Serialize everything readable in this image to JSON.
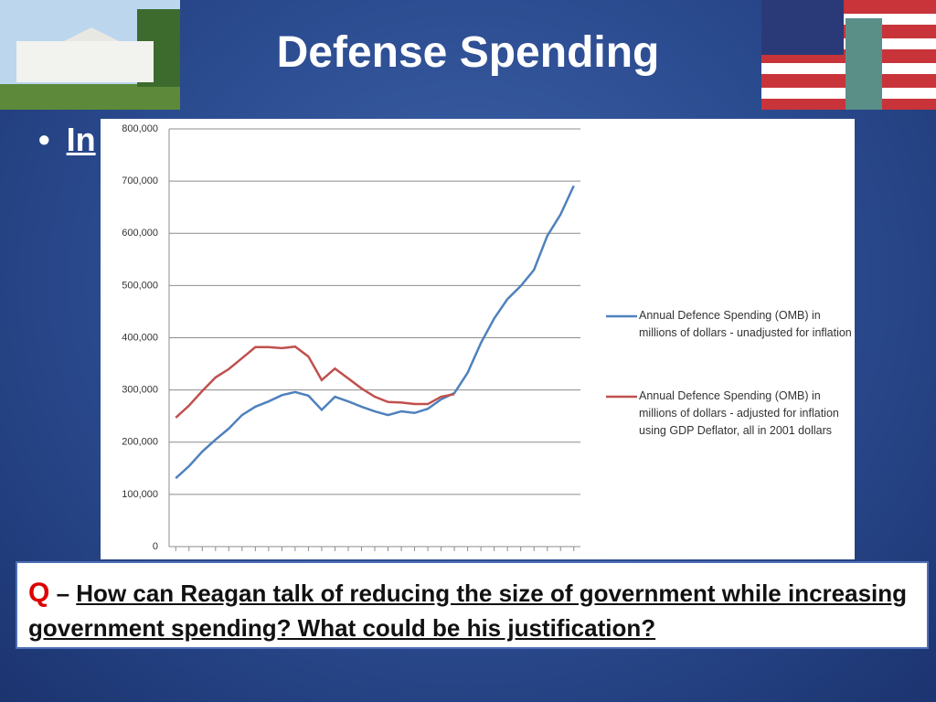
{
  "slide": {
    "title": "Defense Spending",
    "bullet": "In",
    "question": {
      "marker": "Q",
      "dash": "–",
      "text": "How can Reagan talk of reducing the size of government while increasing government spending?  What could be his justification?"
    }
  },
  "chart_data": {
    "type": "line",
    "categories": [
      null,
      null,
      null,
      null,
      null,
      null,
      null,
      null,
      null,
      null,
      null,
      null,
      null,
      null,
      null,
      null,
      null,
      null,
      null,
      null,
      null,
      null,
      null,
      null,
      null,
      null,
      null,
      null,
      null,
      null,
      null
    ],
    "series": [
      {
        "name": "Annual Defence Spending (OMB) in millions of dollars - unadjusted for inflation",
        "color": "#4f81bd",
        "values": [
          131000,
          154000,
          182000,
          205000,
          226000,
          252000,
          268000,
          278000,
          290000,
          296000,
          289000,
          262000,
          287000,
          278000,
          268000,
          259000,
          252000,
          259000,
          256000,
          264000,
          282000,
          294000,
          333000,
          390000,
          437000,
          474000,
          499000,
          530000,
          595000,
          636000,
          691000
        ]
      },
      {
        "name": "Annual Defence Spending (OMB) in millions of dollars - adjusted for inflation using GDP Deflator, all in 2001 dollars",
        "color": "#c0504d",
        "values": [
          247000,
          270000,
          298000,
          324000,
          340000,
          361000,
          382000,
          382000,
          380000,
          383000,
          364000,
          319000,
          341000,
          322000,
          303000,
          287000,
          277000,
          276000,
          273000,
          273000,
          287000,
          292000,
          null,
          null,
          null,
          null,
          null,
          null,
          null,
          null,
          null
        ]
      }
    ],
    "ylim": [
      0,
      800000
    ],
    "yticks": [
      0,
      {
        "value": 100000,
        "label": "100,000"
      },
      {
        "value": 200000,
        "label": "200,000"
      },
      {
        "value": 300000,
        "label": "300,000"
      },
      {
        "value": 400000,
        "label": "400,000"
      },
      {
        "value": 500000,
        "label": "500,000"
      },
      {
        "value": 600000,
        "label": "600,000"
      },
      {
        "value": 700000,
        "label": "700,000"
      },
      {
        "value": 800000,
        "label": "800,000"
      }
    ],
    "grid": true
  }
}
